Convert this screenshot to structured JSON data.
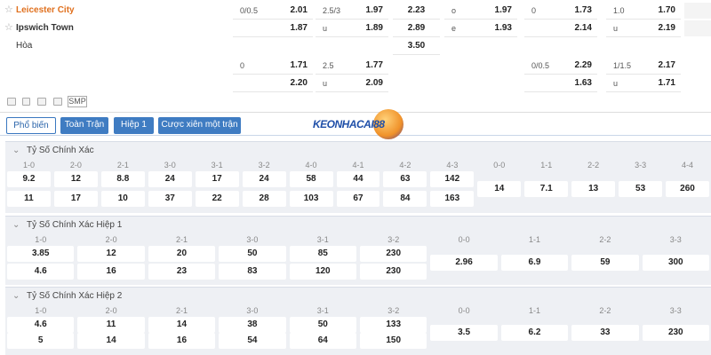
{
  "odds": {
    "rows": [
      {
        "team": "Leicester City",
        "cells": [
          {
            "label": "0/0.5",
            "odds": "2.01"
          },
          {
            "label": "2.5/3",
            "odds": "1.97"
          },
          {
            "odds": "2.23"
          },
          {
            "label": "o",
            "odds": "1.97"
          },
          {
            "label": "0",
            "odds": "1.73"
          },
          {
            "label": "1.0",
            "odds": "1.70"
          }
        ]
      },
      {
        "team": "Ipswich Town",
        "cells": [
          {
            "odds": "1.87"
          },
          {
            "label": "u",
            "odds": "1.89"
          },
          {
            "odds": "2.89"
          },
          {
            "label": "e",
            "odds": "1.93"
          },
          {
            "odds": "2.14"
          },
          {
            "label": "u",
            "odds": "2.19"
          }
        ]
      },
      {
        "team": "Hòa",
        "cells": [
          null,
          null,
          {
            "odds": "3.50"
          },
          null,
          null,
          null
        ]
      },
      {
        "cells": [
          {
            "label": "0",
            "odds": "1.71"
          },
          {
            "label": "2.5",
            "odds": "1.77"
          },
          null,
          null,
          {
            "label": "0/0.5",
            "odds": "2.29"
          },
          {
            "label": "1/1.5",
            "odds": "2.17"
          }
        ]
      },
      {
        "cells": [
          {
            "odds": "2.20"
          },
          {
            "label": "u",
            "odds": "2.09"
          },
          null,
          null,
          {
            "odds": "1.63"
          },
          {
            "label": "u",
            "odds": "1.71"
          }
        ]
      }
    ]
  },
  "toolbar": {
    "smp": "SMP"
  },
  "tabs": [
    "Phổ biến",
    "Toàn Trận",
    "Hiệp 1",
    "Cược xiên một trận"
  ],
  "logo": "KEONHACAI88",
  "sections": [
    {
      "title": "Tỷ Số Chính Xác",
      "scores": [
        "1-0",
        "2-0",
        "2-1",
        "3-0",
        "3-1",
        "3-2",
        "4-0",
        "4-1",
        "4-2",
        "4-3",
        "0-0",
        "1-1",
        "2-2",
        "3-3",
        "4-4"
      ],
      "rows": [
        [
          "9.2",
          "12",
          "8.8",
          "24",
          "17",
          "24",
          "58",
          "44",
          "63",
          "142"
        ],
        [
          "11",
          "17",
          "10",
          "37",
          "22",
          "28",
          "103",
          "67",
          "84",
          "163"
        ]
      ],
      "draws": [
        "14",
        "7.1",
        "13",
        "53",
        "260"
      ]
    },
    {
      "title": "Tỷ Số Chính Xác Hiệp 1",
      "scores": [
        "1-0",
        "2-0",
        "2-1",
        "3-0",
        "3-1",
        "3-2",
        "0-0",
        "1-1",
        "2-2",
        "3-3"
      ],
      "rows": [
        [
          "3.85",
          "12",
          "20",
          "50",
          "85",
          "230"
        ],
        [
          "4.6",
          "16",
          "23",
          "83",
          "120",
          "230"
        ]
      ],
      "draws": [
        "2.96",
        "6.9",
        "59",
        "300"
      ]
    },
    {
      "title": "Tỷ Số Chính Xác Hiệp 2",
      "scores": [
        "1-0",
        "2-0",
        "2-1",
        "3-0",
        "3-1",
        "3-2",
        "0-0",
        "1-1",
        "2-2",
        "3-3"
      ],
      "rows": [
        [
          "4.6",
          "11",
          "14",
          "38",
          "50",
          "133"
        ],
        [
          "5",
          "14",
          "16",
          "54",
          "64",
          "150"
        ]
      ],
      "draws": [
        "3.5",
        "6.2",
        "33",
        "230"
      ]
    }
  ]
}
